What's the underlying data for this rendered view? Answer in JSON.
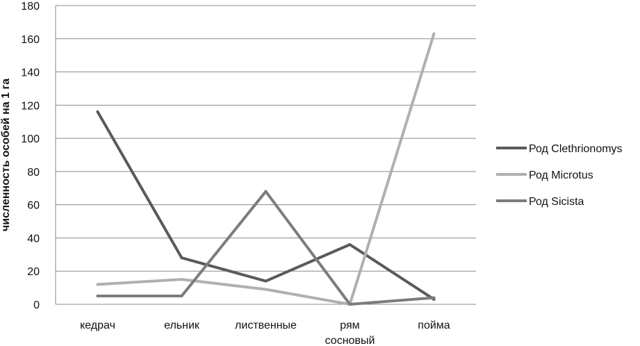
{
  "chart_data": {
    "type": "line",
    "title": "",
    "xlabel": "",
    "ylabel": "численность особей на 1 га",
    "categories": [
      "кедрач",
      "ельник",
      "лиственные",
      "рям сосновый",
      "пойма"
    ],
    "category_lines": [
      [
        "кедрач"
      ],
      [
        "ельник"
      ],
      [
        "лиственные"
      ],
      [
        "рям",
        "сосновый"
      ],
      [
        "пойма"
      ]
    ],
    "ylim": [
      0,
      180
    ],
    "yticks": [
      0,
      20,
      40,
      60,
      80,
      100,
      120,
      140,
      160,
      180
    ],
    "grid": true,
    "legend_position": "right",
    "series": [
      {
        "name": "Род Clethrionomys",
        "values": [
          116,
          28,
          14,
          36,
          3
        ],
        "color": "#5a5a5a"
      },
      {
        "name": "Род Microtus",
        "values": [
          12,
          15,
          9,
          0,
          163
        ],
        "color": "#b0b0b0"
      },
      {
        "name": "Род Sicista",
        "values": [
          5,
          5,
          68,
          0,
          4
        ],
        "color": "#7c7c7c"
      }
    ]
  }
}
